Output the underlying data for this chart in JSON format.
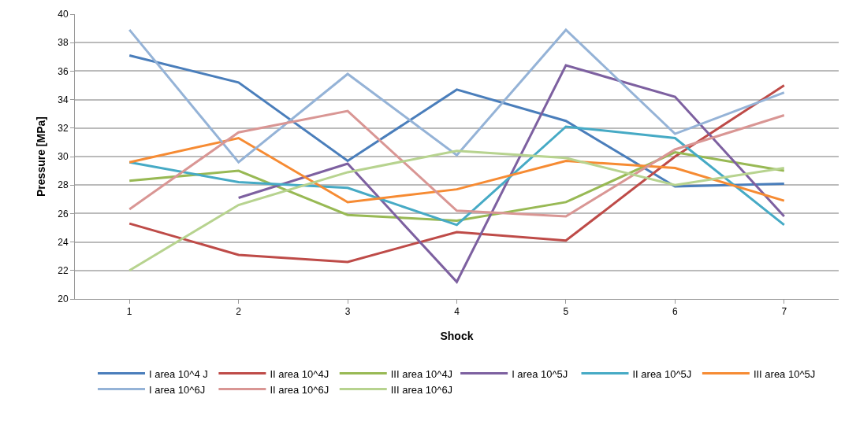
{
  "chart_data": {
    "type": "line",
    "xlabel": "Shock",
    "ylabel": "Pressure [MPa]",
    "categories": [
      "1",
      "2",
      "3",
      "4",
      "5",
      "6",
      "7"
    ],
    "ylim": [
      20,
      40
    ],
    "yticks": [
      20,
      22,
      24,
      26,
      28,
      30,
      32,
      34,
      36,
      38,
      40
    ],
    "grid": "y",
    "legend": "bottom",
    "marker": "none",
    "series": [
      {
        "name": "I area 10^4 J",
        "color": "#4a7ebb",
        "values": [
          37.1,
          35.2,
          29.7,
          34.7,
          32.5,
          27.9,
          28.1
        ]
      },
      {
        "name": "II area 10^4J",
        "color": "#be4b48",
        "values": [
          25.3,
          23.1,
          22.6,
          24.7,
          24.1,
          30.0,
          35.0
        ]
      },
      {
        "name": "III area 10^4J",
        "color": "#98b954",
        "values": [
          28.3,
          29.0,
          25.9,
          25.5,
          26.8,
          30.3,
          29.0
        ]
      },
      {
        "name": "I area 10^5J",
        "color": "#7d60a0",
        "values": [
          null,
          27.1,
          29.5,
          21.2,
          36.4,
          34.2,
          25.8
        ]
      },
      {
        "name": "II area 10^5J",
        "color": "#46aac5",
        "values": [
          29.6,
          28.2,
          27.8,
          25.2,
          32.1,
          31.3,
          25.2
        ]
      },
      {
        "name": "III area 10^5J",
        "color": "#f68b33",
        "values": [
          29.6,
          31.3,
          26.8,
          27.7,
          29.7,
          29.2,
          26.9
        ]
      },
      {
        "name": "I area 10^6J",
        "color": "#95b3d7",
        "values": [
          38.9,
          29.6,
          35.8,
          30.1,
          38.9,
          31.6,
          34.5
        ]
      },
      {
        "name": "II area 10^6J",
        "color": "#d99694",
        "values": [
          26.3,
          31.7,
          33.2,
          26.2,
          25.8,
          30.5,
          32.9
        ]
      },
      {
        "name": "III area 10^6J",
        "color": "#b7d38f",
        "values": [
          22.0,
          26.6,
          28.9,
          30.4,
          29.9,
          28.0,
          29.2
        ]
      }
    ]
  }
}
